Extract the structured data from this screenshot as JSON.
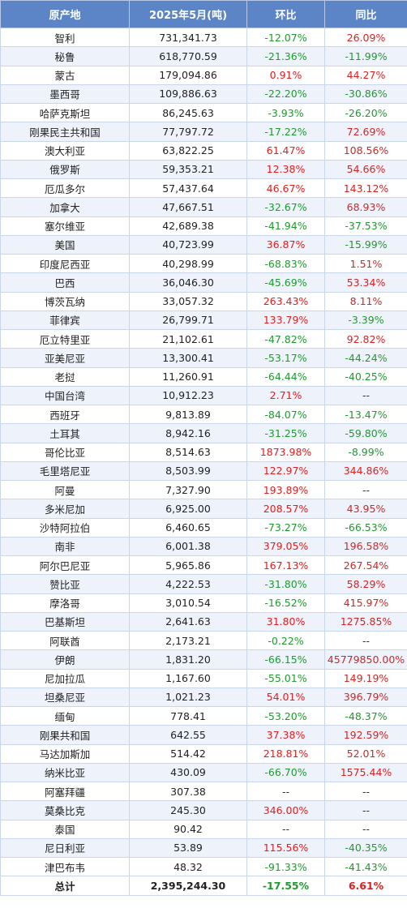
{
  "headers": [
    "原产地",
    "2025年5月(吨)",
    "环比",
    "同比"
  ],
  "rows": [
    [
      "智利",
      "731,341.73",
      "-12.07%",
      "26.09%"
    ],
    [
      "秘鲁",
      "618,770.59",
      "-21.36%",
      "-11.99%"
    ],
    [
      "蒙古",
      "179,094.86",
      "0.91%",
      "44.27%"
    ],
    [
      "墨西哥",
      "109,886.63",
      "-22.20%",
      "-30.86%"
    ],
    [
      "哈萨克斯坦",
      "86,245.63",
      "-3.93%",
      "-26.20%"
    ],
    [
      "刚果民主共和国",
      "77,797.72",
      "-17.22%",
      "72.69%"
    ],
    [
      "澳大利亚",
      "63,822.25",
      "61.47%",
      "108.56%"
    ],
    [
      "俄罗斯",
      "59,353.21",
      "12.38%",
      "54.66%"
    ],
    [
      "厄瓜多尔",
      "57,437.64",
      "46.67%",
      "143.12%"
    ],
    [
      "加拿大",
      "47,667.51",
      "-32.67%",
      "68.93%"
    ],
    [
      "塞尔维亚",
      "42,689.38",
      "-41.94%",
      "-37.53%"
    ],
    [
      "美国",
      "40,723.99",
      "36.87%",
      "-15.99%"
    ],
    [
      "印度尼西亚",
      "40,298.99",
      "-68.83%",
      "1.51%"
    ],
    [
      "巴西",
      "36,046.30",
      "-45.69%",
      "53.34%"
    ],
    [
      "博茨瓦纳",
      "33,057.32",
      "263.43%",
      "8.11%"
    ],
    [
      "菲律宾",
      "26,799.71",
      "133.79%",
      "-3.39%"
    ],
    [
      "厄立特里亚",
      "21,102.61",
      "-47.82%",
      "92.82%"
    ],
    [
      "亚美尼亚",
      "13,300.41",
      "-53.17%",
      "-44.24%"
    ],
    [
      "老挝",
      "11,260.91",
      "-64.44%",
      "-40.25%"
    ],
    [
      "中国台湾",
      "10,912.23",
      "2.71%",
      "--"
    ],
    [
      "西班牙",
      "9,813.89",
      "-84.07%",
      "-13.47%"
    ],
    [
      "土耳其",
      "8,942.16",
      "-31.25%",
      "-59.80%"
    ],
    [
      "哥伦比亚",
      "8,514.63",
      "1873.98%",
      "-8.99%"
    ],
    [
      "毛里塔尼亚",
      "8,503.99",
      "122.97%",
      "344.86%"
    ],
    [
      "阿曼",
      "7,327.90",
      "193.89%",
      "--"
    ],
    [
      "多米尼加",
      "6,925.00",
      "208.57%",
      "43.95%"
    ],
    [
      "沙特阿拉伯",
      "6,460.65",
      "-73.27%",
      "-66.53%"
    ],
    [
      "南非",
      "6,001.38",
      "379.05%",
      "196.58%"
    ],
    [
      "阿尔巴尼亚",
      "5,965.86",
      "167.13%",
      "267.54%"
    ],
    [
      "赞比亚",
      "4,222.53",
      "-31.80%",
      "58.29%"
    ],
    [
      "摩洛哥",
      "3,010.54",
      "-16.52%",
      "415.97%"
    ],
    [
      "巴基斯坦",
      "2,641.63",
      "31.80%",
      "1275.85%"
    ],
    [
      "阿联酋",
      "2,173.21",
      "-0.22%",
      "--"
    ],
    [
      "伊朗",
      "1,831.20",
      "-66.15%",
      "45779850.00%"
    ],
    [
      "尼加拉瓜",
      "1,167.60",
      "-55.01%",
      "149.19%"
    ],
    [
      "坦桑尼亚",
      "1,021.23",
      "54.01%",
      "396.79%"
    ],
    [
      "缅甸",
      "778.41",
      "-53.20%",
      "-48.37%"
    ],
    [
      "刚果共和国",
      "642.55",
      "37.38%",
      "192.59%"
    ],
    [
      "马达加斯加",
      "514.42",
      "218.81%",
      "52.01%"
    ],
    [
      "纳米比亚",
      "430.09",
      "-66.70%",
      "1575.44%"
    ],
    [
      "阿塞拜疆",
      "307.38",
      "--",
      "--"
    ],
    [
      "莫桑比克",
      "245.30",
      "346.00%",
      "--"
    ],
    [
      "泰国",
      "90.42",
      "--",
      "--"
    ],
    [
      "尼日利亚",
      "53.89",
      "115.56%",
      "-40.35%"
    ],
    [
      "津巴布韦",
      "48.32",
      "-91.33%",
      "-41.43%"
    ]
  ],
  "total": [
    "总计",
    "2,395,244.30",
    "-17.55%",
    "6.61%"
  ],
  "colors": {
    "header_bg": "#5c85c7",
    "negative": "#1f9a2e",
    "positive": "#e02020",
    "stripe": "#eef3fb"
  }
}
